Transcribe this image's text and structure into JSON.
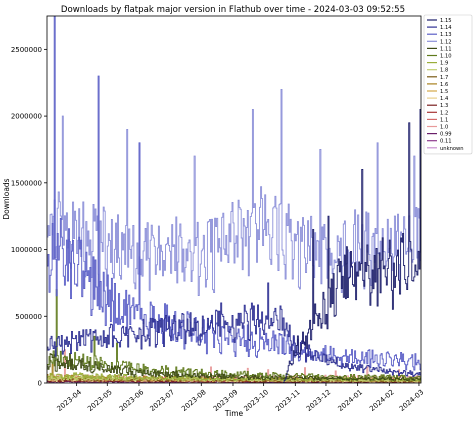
{
  "chart_data": {
    "type": "line",
    "title": "Downloads by flatpak major version in Flathub over time - 2024-03-03 09:52:55",
    "xlabel": "Time",
    "ylabel": "Downloads",
    "x_range": [
      "2023-03-03",
      "2024-03-03"
    ],
    "ylim": [
      0,
      2750000
    ],
    "y_ticks": [
      0,
      500000,
      1000000,
      1500000,
      2000000,
      2500000
    ],
    "y_tick_labels": [
      "0",
      "500000",
      "1000000",
      "1500000",
      "2000000",
      "2500000"
    ],
    "x_ticks": [
      "2023-04-01",
      "2023-05-01",
      "2023-06-01",
      "2023-07-01",
      "2023-08-01",
      "2023-09-01",
      "2023-10-01",
      "2023-11-01",
      "2023-12-01",
      "2024-01-01",
      "2024-02-01",
      "2024-03-01"
    ],
    "x_tick_labels": [
      "2023-04",
      "2023-05",
      "2023-06",
      "2023-07",
      "2023-08",
      "2023-09",
      "2023-10",
      "2023-11",
      "2023-12",
      "2024-01",
      "2024-02",
      "2024-03"
    ],
    "grid": false,
    "legend_position": "outside-right",
    "series": [
      {
        "name": "1.15",
        "color": "#1d1f6b",
        "start": "2023-10-20",
        "keypoints": [
          [
            "2023-10-20",
            5000
          ],
          [
            "2023-11-01",
            260000
          ],
          [
            "2023-11-15",
            420000
          ],
          [
            "2023-12-01",
            600000
          ],
          [
            "2023-12-15",
            800000
          ],
          [
            "2024-01-01",
            900000
          ],
          [
            "2024-01-15",
            850000
          ],
          [
            "2024-02-01",
            900000
          ],
          [
            "2024-02-15",
            950000
          ],
          [
            "2024-03-03",
            1000000
          ]
        ],
        "noise": 0.25,
        "spikes": [
          [
            "2023-11-18",
            1150000
          ],
          [
            "2023-12-03",
            1250000
          ],
          [
            "2024-01-05",
            1600000
          ],
          [
            "2024-02-20",
            1950000
          ],
          [
            "2024-03-02",
            2050000
          ]
        ]
      },
      {
        "name": "1.14",
        "color": "#2f3194",
        "start": "2023-03-03",
        "keypoints": [
          [
            "2023-03-03",
            300000
          ],
          [
            "2023-04-01",
            320000
          ],
          [
            "2023-05-01",
            360000
          ],
          [
            "2023-06-01",
            390000
          ],
          [
            "2023-07-01",
            420000
          ],
          [
            "2023-08-01",
            440000
          ],
          [
            "2023-09-01",
            480000
          ],
          [
            "2023-10-01",
            520000
          ],
          [
            "2023-10-20",
            480000
          ],
          [
            "2023-11-01",
            280000
          ],
          [
            "2023-12-01",
            180000
          ],
          [
            "2024-01-01",
            120000
          ],
          [
            "2024-02-01",
            90000
          ],
          [
            "2024-03-03",
            70000
          ]
        ],
        "noise": 0.22,
        "spikes": [
          [
            "2023-08-20",
            600000
          ],
          [
            "2023-10-05",
            750000
          ]
        ]
      },
      {
        "name": "1.13",
        "color": "#5b5fc7",
        "start": "2023-03-03",
        "keypoints": [
          [
            "2023-03-03",
            1050000
          ],
          [
            "2023-04-01",
            900000
          ],
          [
            "2023-05-01",
            650000
          ],
          [
            "2023-06-01",
            550000
          ],
          [
            "2023-07-01",
            450000
          ],
          [
            "2023-08-01",
            380000
          ],
          [
            "2023-09-01",
            350000
          ],
          [
            "2023-10-01",
            320000
          ],
          [
            "2023-11-01",
            270000
          ],
          [
            "2023-12-01",
            220000
          ],
          [
            "2024-01-01",
            200000
          ],
          [
            "2024-02-01",
            180000
          ],
          [
            "2024-03-03",
            170000
          ]
        ],
        "noise": 0.3,
        "spikes": [
          [
            "2023-03-10",
            2750000
          ],
          [
            "2023-04-22",
            2300000
          ],
          [
            "2023-06-01",
            1800000
          ]
        ]
      },
      {
        "name": "1.12",
        "color": "#8c90d9",
        "start": "2023-03-03",
        "keypoints": [
          [
            "2023-03-03",
            1250000
          ],
          [
            "2023-04-01",
            1150000
          ],
          [
            "2023-05-01",
            1100000
          ],
          [
            "2023-06-01",
            1000000
          ],
          [
            "2023-07-01",
            1050000
          ],
          [
            "2023-08-01",
            1000000
          ],
          [
            "2023-09-01",
            1150000
          ],
          [
            "2023-10-01",
            1300000
          ],
          [
            "2023-11-01",
            1100000
          ],
          [
            "2023-12-01",
            1000000
          ],
          [
            "2024-01-01",
            1100000
          ],
          [
            "2024-02-01",
            1050000
          ],
          [
            "2024-03-03",
            1150000
          ]
        ],
        "noise": 0.2,
        "spikes": [
          [
            "2023-03-18",
            2000000
          ],
          [
            "2023-05-20",
            1900000
          ],
          [
            "2023-07-25",
            1700000
          ],
          [
            "2023-09-20",
            2050000
          ],
          [
            "2023-10-18",
            2200000
          ],
          [
            "2023-11-25",
            1750000
          ],
          [
            "2024-01-20",
            1800000
          ],
          [
            "2024-02-25",
            1700000
          ]
        ]
      },
      {
        "name": "1.11",
        "color": "#3d4a14",
        "start": "2023-03-03",
        "keypoints": [
          [
            "2023-03-03",
            170000
          ],
          [
            "2023-04-01",
            140000
          ],
          [
            "2023-06-01",
            80000
          ],
          [
            "2023-09-01",
            50000
          ],
          [
            "2023-12-01",
            35000
          ],
          [
            "2024-03-03",
            30000
          ]
        ],
        "noise": 0.35,
        "spikes": [
          [
            "2023-03-25",
            220000
          ]
        ]
      },
      {
        "name": "1.10",
        "color": "#5f7a1c",
        "start": "2023-03-03",
        "keypoints": [
          [
            "2023-03-03",
            190000
          ],
          [
            "2023-04-01",
            170000
          ],
          [
            "2023-05-01",
            140000
          ],
          [
            "2023-06-01",
            110000
          ],
          [
            "2023-08-01",
            80000
          ],
          [
            "2023-10-01",
            60000
          ],
          [
            "2023-12-01",
            50000
          ],
          [
            "2024-03-03",
            45000
          ]
        ],
        "noise": 0.35,
        "spikes": [
          [
            "2023-03-12",
            700000
          ],
          [
            "2023-04-18",
            350000
          ],
          [
            "2023-05-10",
            300000
          ]
        ]
      },
      {
        "name": "1.9",
        "color": "#9aae3a",
        "start": "2023-03-03",
        "keypoints": [
          [
            "2023-03-03",
            60000
          ],
          [
            "2023-06-01",
            45000
          ],
          [
            "2023-09-01",
            35000
          ],
          [
            "2024-03-03",
            25000
          ]
        ],
        "noise": 0.4,
        "spikes": []
      },
      {
        "name": "1.8",
        "color": "#c2cf72",
        "start": "2023-03-03",
        "keypoints": [
          [
            "2023-03-03",
            40000
          ],
          [
            "2023-09-01",
            28000
          ],
          [
            "2024-03-03",
            20000
          ]
        ],
        "noise": 0.4,
        "spikes": []
      },
      {
        "name": "1.7",
        "color": "#7a5a14",
        "start": "2023-03-03",
        "keypoints": [
          [
            "2023-03-03",
            30000
          ],
          [
            "2024-03-03",
            15000
          ]
        ],
        "noise": 0.4,
        "spikes": []
      },
      {
        "name": "1.6",
        "color": "#a8811f",
        "start": "2023-03-03",
        "keypoints": [
          [
            "2023-03-03",
            45000
          ],
          [
            "2023-09-01",
            30000
          ],
          [
            "2024-03-03",
            22000
          ]
        ],
        "noise": 0.45,
        "spikes": [
          [
            "2023-03-08",
            140000
          ]
        ]
      },
      {
        "name": "1.5",
        "color": "#d3a84a",
        "start": "2023-03-03",
        "keypoints": [
          [
            "2023-03-03",
            35000
          ],
          [
            "2024-03-03",
            18000
          ]
        ],
        "noise": 0.45,
        "spikes": []
      },
      {
        "name": "1.4",
        "color": "#e8cf8c",
        "start": "2023-03-03",
        "keypoints": [
          [
            "2023-03-03",
            25000
          ],
          [
            "2024-03-03",
            12000
          ]
        ],
        "noise": 0.45,
        "spikes": []
      },
      {
        "name": "1.3",
        "color": "#7a1f1f",
        "start": "2023-03-03",
        "keypoints": [
          [
            "2023-03-03",
            15000
          ],
          [
            "2024-03-03",
            8000
          ]
        ],
        "noise": 0.45,
        "spikes": []
      },
      {
        "name": "1.2",
        "color": "#a83434",
        "start": "2023-03-03",
        "keypoints": [
          [
            "2023-03-03",
            20000
          ],
          [
            "2024-03-03",
            10000
          ]
        ],
        "noise": 0.45,
        "spikes": []
      },
      {
        "name": "1.1",
        "color": "#d46a6a",
        "start": "2023-03-03",
        "keypoints": [
          [
            "2023-03-03",
            30000
          ],
          [
            "2023-09-01",
            25000
          ],
          [
            "2024-03-03",
            20000
          ]
        ],
        "noise": 0.5,
        "spikes": []
      },
      {
        "name": "1.0",
        "color": "#e89a9a",
        "start": "2023-03-03",
        "keypoints": [
          [
            "2023-03-03",
            50000
          ],
          [
            "2023-06-01",
            40000
          ],
          [
            "2023-09-01",
            45000
          ],
          [
            "2024-03-03",
            40000
          ]
        ],
        "noise": 0.4,
        "spikes": [
          [
            "2023-03-20",
            250000
          ],
          [
            "2023-08-10",
            120000
          ],
          [
            "2023-09-15",
            110000
          ],
          [
            "2023-10-05",
            100000
          ],
          [
            "2023-11-10",
            115000
          ],
          [
            "2023-12-10",
            90000
          ],
          [
            "2024-01-10",
            120000
          ],
          [
            "2024-02-10",
            100000
          ]
        ]
      },
      {
        "name": "0.99",
        "color": "#6a1f6a",
        "start": "2023-03-03",
        "keypoints": [
          [
            "2023-03-03",
            10000
          ],
          [
            "2024-03-03",
            6000
          ]
        ],
        "noise": 0.5,
        "spikes": []
      },
      {
        "name": "0.11",
        "color": "#8e3a8e",
        "start": "2023-03-03",
        "keypoints": [
          [
            "2023-03-03",
            12000
          ],
          [
            "2024-03-03",
            8000
          ]
        ],
        "noise": 0.5,
        "spikes": []
      },
      {
        "name": "unknown",
        "color": "#c98fd0",
        "start": "2023-03-03",
        "keypoints": [
          [
            "2023-03-03",
            15000
          ],
          [
            "2024-03-03",
            12000
          ]
        ],
        "noise": 0.5,
        "spikes": []
      }
    ]
  }
}
